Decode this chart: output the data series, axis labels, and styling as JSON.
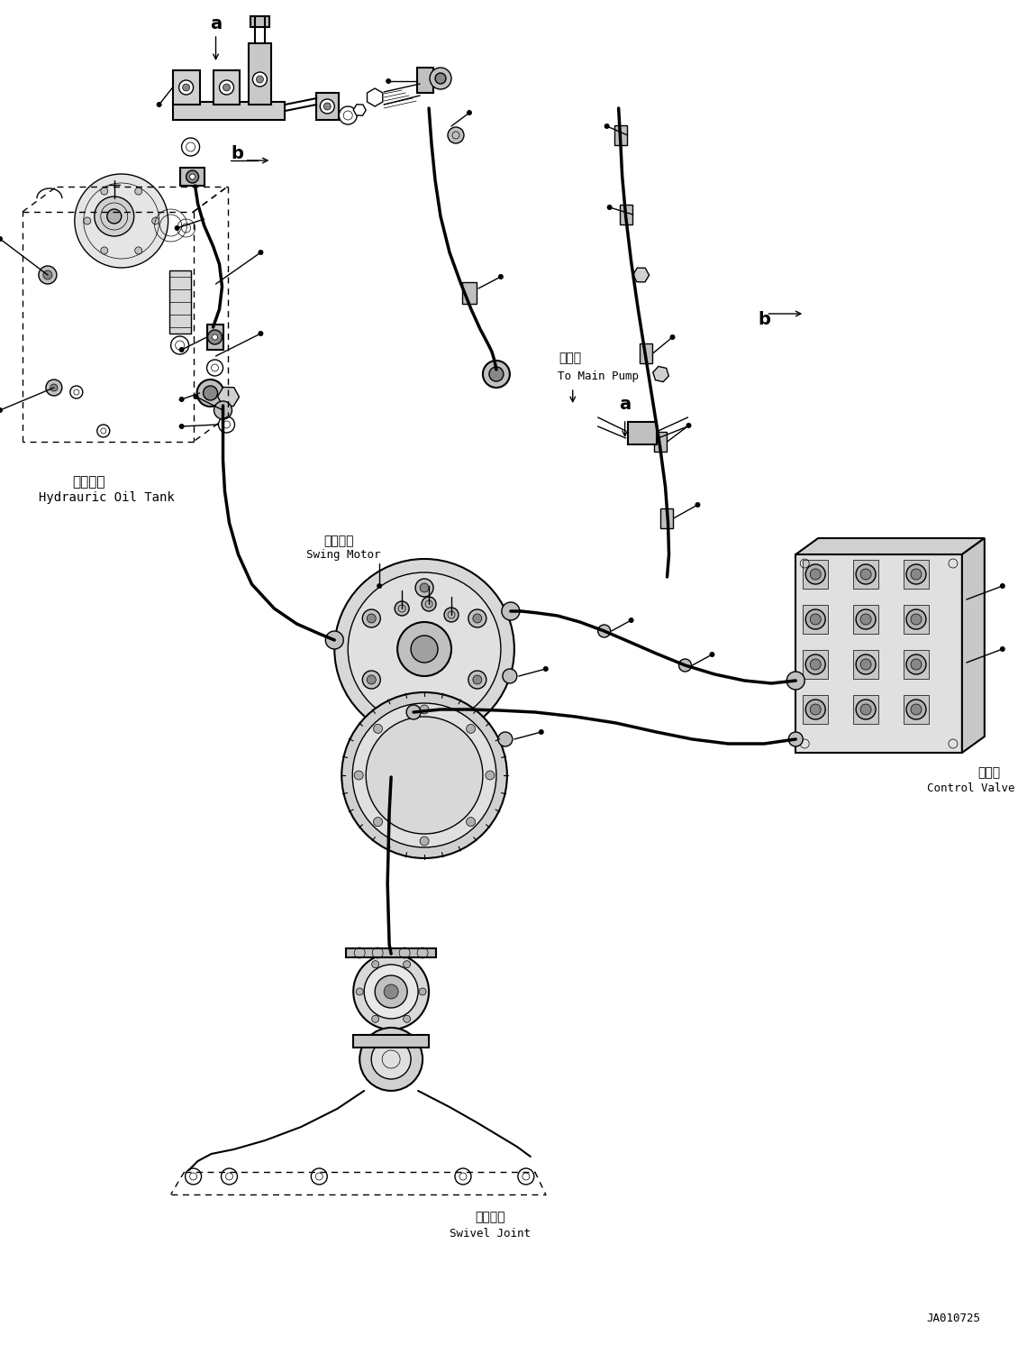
{
  "bg_color": "#ffffff",
  "line_color": "#000000",
  "fig_width": 11.4,
  "fig_height": 14.92,
  "dpi": 100,
  "part_number": "JA010725",
  "labels": {
    "hydraulic_tank_cn": "液压油筱",
    "hydraulic_tank_en": "Hydrauric Oil Tank",
    "swing_motor_cn": "回转马达",
    "swing_motor_en": "Swing Motor",
    "swivel_joint_cn": "回转接头",
    "swivel_joint_en": "Swivel Joint",
    "control_valve_cn": "控制阀",
    "control_valve_en": "Control Valve",
    "main_pump_cn": "至主泵",
    "main_pump_en": "To Main Pump",
    "label_a": "a",
    "label_b": "b"
  }
}
